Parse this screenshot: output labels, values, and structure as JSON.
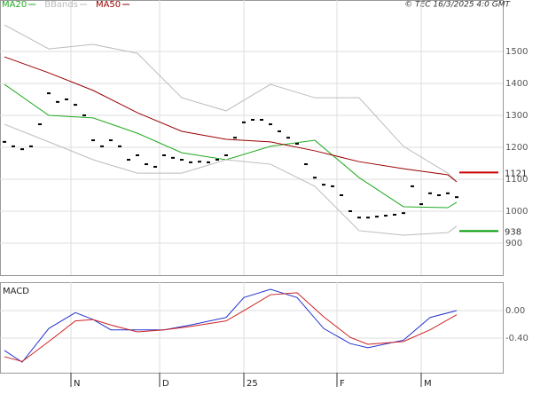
{
  "chart_data": [
    {
      "type": "line",
      "timestamp": "© TEC 16/3/2025 4:0 GMT",
      "xlim": [
        -0.5,
        56.2
      ],
      "ylim": [
        800,
        1661
      ],
      "yticks": [
        900,
        1000,
        1100,
        1200,
        1300,
        1400,
        1500
      ],
      "grid": true,
      "price": {
        "color": "#000000",
        "x": [
          0,
          1,
          2,
          3,
          4,
          5,
          6,
          7,
          8,
          9,
          10,
          11,
          12,
          13,
          14,
          15,
          16,
          17,
          18,
          19,
          20,
          21,
          22,
          23,
          24,
          25,
          26,
          27,
          28,
          29,
          30,
          31,
          32,
          33,
          34,
          35,
          36,
          37,
          38,
          39,
          40,
          41,
          42,
          43,
          44,
          45,
          46,
          47,
          48,
          49,
          50,
          51
        ],
        "values": [
          1217,
          1203,
          1194,
          1203,
          1272,
          1369,
          1342,
          1350,
          1333,
          1300,
          1222,
          1203,
          1222,
          1203,
          1161,
          1175,
          1147,
          1139,
          1175,
          1167,
          1161,
          1153,
          1155,
          1153,
          1161,
          1175,
          1230,
          1278,
          1286,
          1286,
          1272,
          1250,
          1230,
          1211,
          1147,
          1105,
          1083,
          1078,
          1050,
          1000,
          980,
          980,
          983,
          986,
          989,
          994,
          1078,
          1022,
          1056,
          1050,
          1056,
          1044
        ]
      },
      "series": [
        {
          "name": "MA20",
          "color": "#22aa22",
          "x": [
            0,
            5,
            10,
            15,
            20,
            25,
            30,
            35,
            40,
            45,
            50,
            51
          ],
          "values": [
            1397,
            1300,
            1292,
            1244,
            1183,
            1161,
            1203,
            1222,
            1105,
            1014,
            1011,
            1028
          ]
        },
        {
          "name": "BBands",
          "color": "#bbbbbb",
          "x": [
            0,
            5,
            10,
            15,
            20,
            25,
            30,
            35,
            40,
            45,
            50,
            51
          ],
          "upper": [
            1583,
            1508,
            1522,
            1494,
            1355,
            1314,
            1397,
            1355,
            1355,
            1203,
            1119,
            1092
          ],
          "lower": [
            1272,
            1217,
            1161,
            1119,
            1119,
            1161,
            1147,
            1078,
            939,
            925,
            933,
            953
          ]
        },
        {
          "name": "MA50",
          "color": "#990000",
          "x": [
            0,
            5,
            10,
            15,
            20,
            25,
            30,
            35,
            40,
            45,
            50,
            51
          ],
          "values": [
            1483,
            1433,
            1378,
            1308,
            1250,
            1225,
            1217,
            1189,
            1155,
            1133,
            1114,
            1092
          ]
        }
      ],
      "markers": [
        {
          "value": 1121,
          "color": "#cc0000"
        },
        {
          "value": 938,
          "color": "#009900"
        }
      ]
    },
    {
      "type": "line",
      "title": "MACD",
      "xlim": [
        -0.5,
        56.2
      ],
      "ylim": [
        -0.903,
        0.413
      ],
      "yticks": [
        {
          "value": 0,
          "label": "0.00"
        },
        {
          "value": -0.4,
          "label": "-0.40"
        }
      ],
      "xticks": [
        {
          "value": 7.5,
          "label": "N"
        },
        {
          "value": 17.5,
          "label": "D"
        },
        {
          "value": 27,
          "label": "25"
        },
        {
          "value": 37.5,
          "label": "F"
        },
        {
          "value": 47,
          "label": "M"
        }
      ],
      "x": [
        0,
        2,
        5,
        8,
        10,
        12,
        15,
        18,
        21,
        25,
        27,
        30,
        33,
        36,
        39,
        41,
        45,
        48,
        51
      ],
      "series": [
        {
          "color": "#2233cc",
          "values": [
            -0.58,
            -0.75,
            -0.26,
            -0.03,
            -0.13,
            -0.28,
            -0.28,
            -0.28,
            -0.21,
            -0.1,
            0.19,
            0.31,
            0.19,
            -0.26,
            -0.48,
            -0.54,
            -0.43,
            -0.1,
            0
          ]
        },
        {
          "color": "#cc2222",
          "values": [
            -0.67,
            -0.74,
            -0.45,
            -0.15,
            -0.13,
            -0.21,
            -0.31,
            -0.28,
            -0.23,
            -0.15,
            0,
            0.23,
            0.26,
            -0.09,
            -0.39,
            -0.49,
            -0.45,
            -0.28,
            -0.06
          ]
        }
      ]
    }
  ]
}
